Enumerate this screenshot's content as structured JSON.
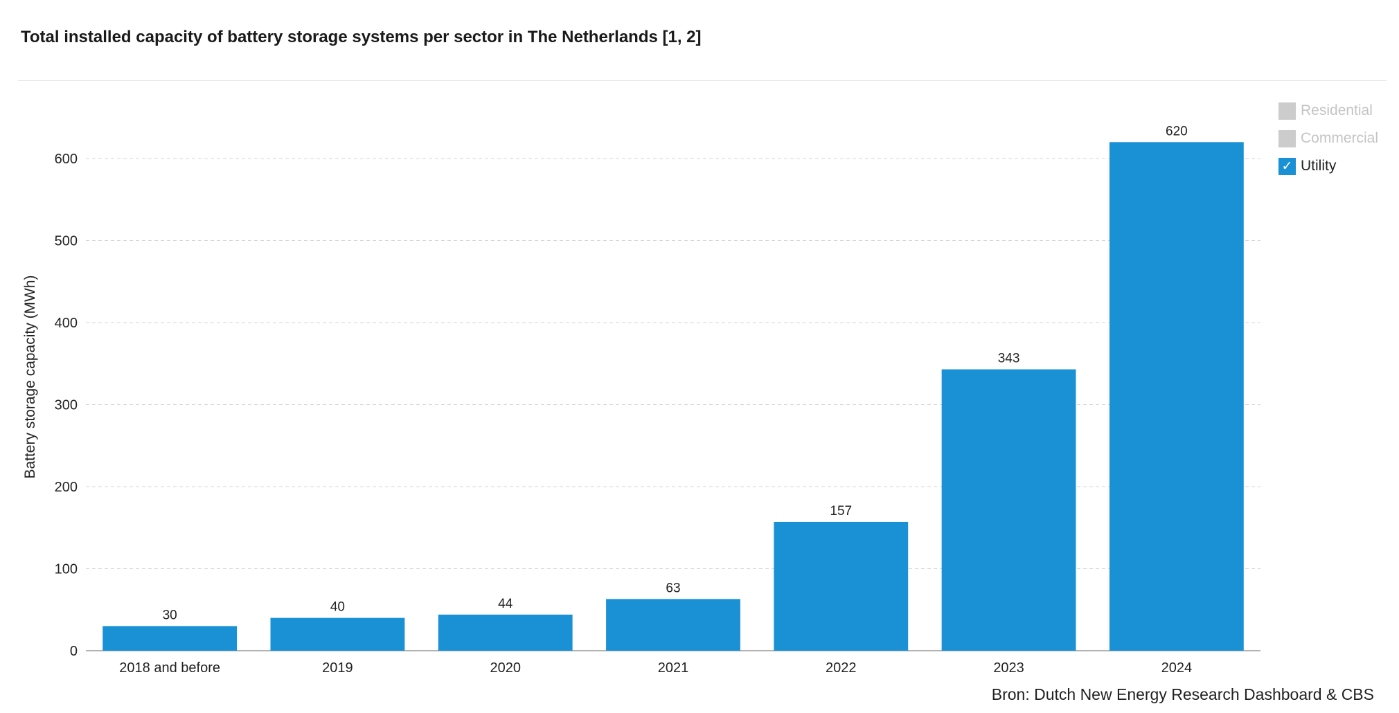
{
  "title": "Total installed capacity of battery storage systems per sector in The Netherlands [1, 2]",
  "source": "Bron: Dutch New Energy Research Dashboard & CBS",
  "legend": [
    {
      "label": "Residential",
      "active": false
    },
    {
      "label": "Commercial",
      "active": false
    },
    {
      "label": "Utility",
      "active": true
    }
  ],
  "check_glyph": "✓",
  "colors": {
    "bar": "#1b91d5",
    "inactive": "#cccccc",
    "grid": "#d4d4d4"
  },
  "chart_data": {
    "type": "bar",
    "categories": [
      "2018 and before",
      "2019",
      "2020",
      "2021",
      "2022",
      "2023",
      "2024"
    ],
    "series": [
      {
        "name": "Utility",
        "values": [
          30,
          40,
          44,
          63,
          157,
          343,
          620
        ]
      }
    ],
    "ylabel": "Battery storage capacity (MWh)",
    "xlabel": "",
    "ylim": [
      0,
      600
    ],
    "yticks": [
      0,
      100,
      200,
      300,
      400,
      500,
      600
    ],
    "grid": true,
    "legend_position": "top-right"
  }
}
